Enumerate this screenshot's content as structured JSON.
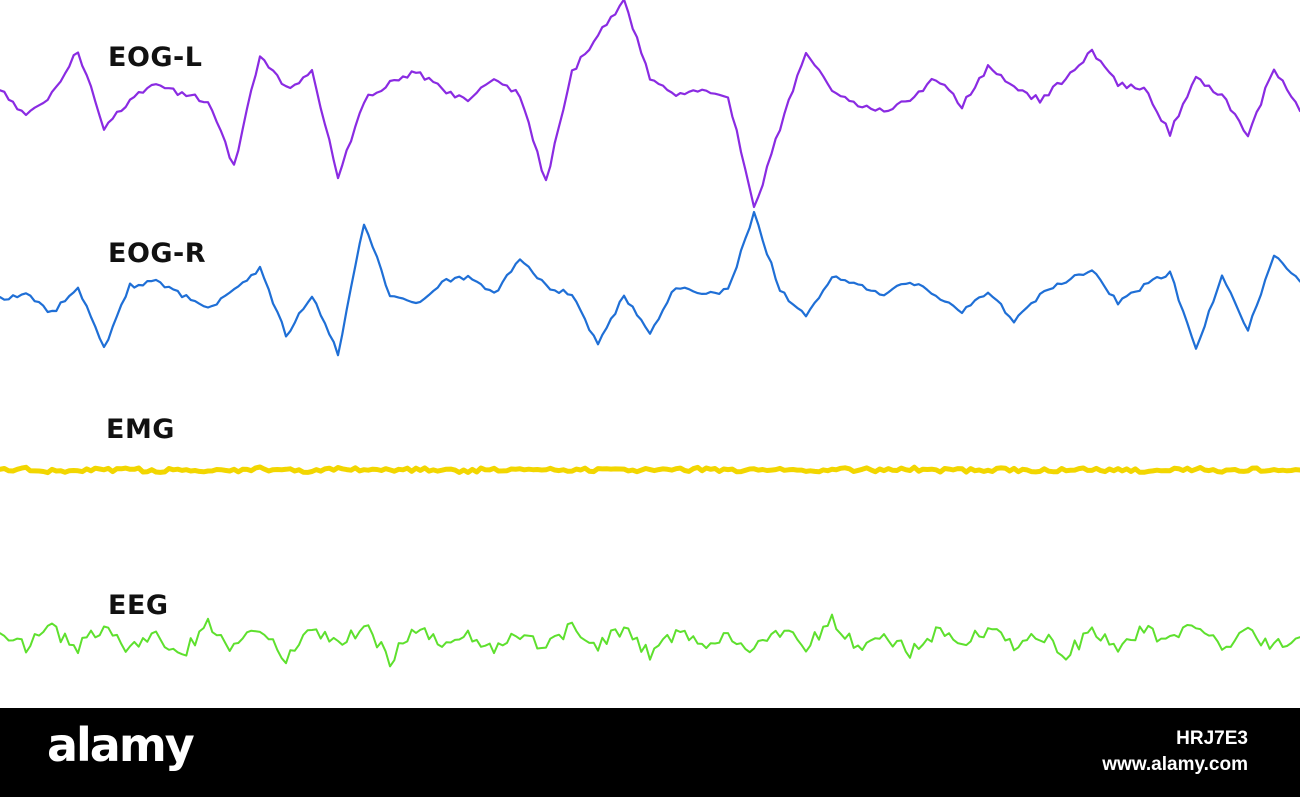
{
  "chart_data": {
    "type": "line",
    "title": "",
    "xlabel": "",
    "ylabel": "",
    "grid": false,
    "legend": "none",
    "x": [
      0,
      2,
      4,
      6,
      8,
      10,
      12,
      14,
      16,
      18,
      20,
      22,
      24,
      26,
      28,
      30,
      32,
      34,
      36,
      38,
      40,
      42,
      44,
      46,
      48,
      50,
      52,
      54,
      56,
      58,
      60,
      62,
      64,
      66,
      68,
      70,
      72,
      74,
      76,
      78,
      80,
      82,
      84,
      86,
      88,
      90,
      92,
      94,
      96,
      98,
      100
    ],
    "series": [
      {
        "name": "EOG-L",
        "color": "#8a2be2",
        "values": [
          0.2,
          -0.3,
          0.1,
          0.9,
          -0.5,
          0.0,
          0.3,
          0.1,
          0.0,
          -1.2,
          0.8,
          0.2,
          0.5,
          -1.4,
          0.0,
          0.3,
          0.5,
          0.2,
          0.0,
          0.4,
          0.1,
          -1.5,
          0.5,
          1.2,
          1.8,
          0.4,
          0.1,
          0.2,
          0.1,
          -2.0,
          -0.5,
          0.9,
          0.2,
          -0.1,
          -0.2,
          0.0,
          0.4,
          -0.1,
          0.6,
          0.2,
          0.0,
          0.4,
          0.9,
          0.3,
          0.2,
          -0.6,
          0.4,
          0.1,
          -0.7,
          0.6,
          -0.2
        ],
        "stroke": 2.2
      },
      {
        "name": "EOG-R",
        "color": "#1f6fd6",
        "values": [
          -0.1,
          0.0,
          -0.4,
          0.2,
          -1.2,
          0.2,
          0.3,
          0.0,
          -0.3,
          0.1,
          0.6,
          -0.9,
          0.0,
          -1.3,
          1.6,
          0.0,
          -0.2,
          0.3,
          0.4,
          0.0,
          0.8,
          0.2,
          0.0,
          -1.1,
          0.0,
          -0.9,
          0.2,
          0.0,
          0.1,
          1.8,
          0.1,
          -0.5,
          0.4,
          0.2,
          0.0,
          0.3,
          0.0,
          -0.4,
          0.1,
          -0.6,
          0.0,
          0.3,
          0.6,
          -0.2,
          0.2,
          0.5,
          -1.2,
          0.4,
          -0.8,
          0.9,
          0.3
        ],
        "stroke": 2.2
      },
      {
        "name": "EMG",
        "color": "#f2d600",
        "values": [
          0.0,
          0.1,
          -0.1,
          0.05,
          -0.05,
          0.1,
          -0.1,
          0.05,
          0.0,
          -0.05,
          0.1,
          0.0,
          -0.1,
          0.05,
          0.1,
          -0.05,
          0.0,
          0.05,
          -0.1,
          0.1,
          0.0,
          -0.05,
          0.05,
          0.0,
          -0.1,
          0.05,
          0.0,
          0.1,
          -0.05,
          0.0,
          0.05,
          -0.1,
          0.0,
          0.05,
          -0.05,
          0.1,
          0.0,
          -0.05,
          0.05,
          0.0,
          -0.1,
          0.05,
          0.0,
          0.05,
          -0.05,
          0.0,
          0.1,
          -0.05,
          0.0,
          0.05,
          0.0
        ],
        "stroke": 5
      },
      {
        "name": "EEG",
        "color": "#5ee02e",
        "values": [
          0.3,
          -0.2,
          0.4,
          -0.3,
          0.5,
          -0.4,
          0.2,
          -0.5,
          0.6,
          -0.3,
          0.4,
          -0.6,
          0.3,
          -0.2,
          0.5,
          -0.7,
          0.4,
          -0.1,
          0.3,
          -0.4,
          0.2,
          -0.3,
          0.5,
          -0.2,
          0.4,
          -0.5,
          0.3,
          -0.1,
          0.2,
          -0.4,
          0.3,
          -0.2,
          0.7,
          -0.3,
          0.2,
          -0.4,
          0.3,
          -0.1,
          0.4,
          -0.3,
          0.2,
          -0.5,
          0.3,
          -0.2,
          0.4,
          -0.1,
          0.5,
          -0.3,
          0.2,
          -0.2,
          0.1
        ],
        "stroke": 2
      }
    ]
  },
  "footer": {
    "brand": "alamy",
    "image_id": "HRJ7E3",
    "site_url": "www.alamy.com"
  }
}
